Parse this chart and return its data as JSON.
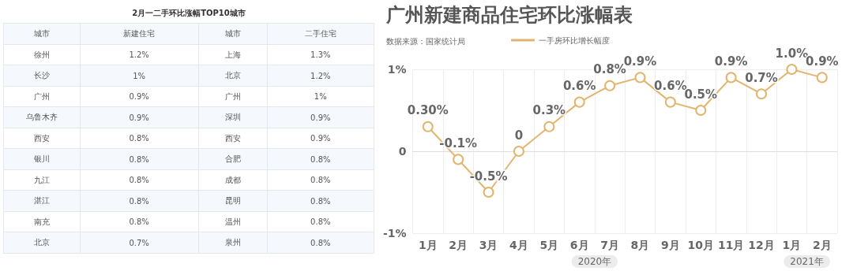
{
  "chart_data": [
    {
      "type": "other",
      "title": "2月一二手环比涨幅TOP10城市",
      "annotations": [
        "城市",
        "新建住宅",
        "城市",
        "二手住宅",
        "徐州",
        "1.2%",
        "上海",
        "1.3%",
        "长沙",
        "1%",
        "北京",
        "1.2%",
        "广州",
        "0.9%",
        "广州",
        "1%",
        "乌鲁木齐",
        "0.9%",
        "深圳",
        "0.9%",
        "西安",
        "0.8%",
        "西安",
        "0.9%",
        "银川",
        "0.8%",
        "合肥",
        "0.8%",
        "九江",
        "0.8%",
        "成都",
        "0.8%",
        "湛江",
        "0.8%",
        "昆明",
        "0.8%",
        "南充",
        "0.8%",
        "温州",
        "0.8%",
        "北京",
        "0.7%",
        "泉州",
        "0.8%"
      ]
    },
    {
      "type": "line",
      "title": "广州新建商品住宅环比涨幅表",
      "subtitle": "数据来源：国家统计局",
      "categories": [
        "1月",
        "2月",
        "3月",
        "4月",
        "5月",
        "6月",
        "7月",
        "8月",
        "9月",
        "10月",
        "11月",
        "12月",
        "1月",
        "2月"
      ],
      "series": [
        {
          "name": "一手房环比增长幅度",
          "color": "#e2b46c",
          "values": [
            0.3,
            -0.1,
            -0.5,
            0,
            0.3,
            0.6,
            0.8,
            0.9,
            0.6,
            0.5,
            0.9,
            0.7,
            1.0,
            0.9
          ],
          "value_labels": [
            "0.30%",
            "-0.1%",
            "-0.5%",
            "0",
            "0.3%",
            "0.6%",
            "0.8%",
            "0.9%",
            "0.6%",
            "0.5%",
            "0.9%",
            "0.7%",
            "1.0%",
            "0.9%"
          ]
        }
      ],
      "ylim": [
        -1,
        1
      ],
      "yticks": [
        {
          "value": -1,
          "label": "-1%"
        },
        0,
        {
          "value": 1,
          "label": "1%"
        }
      ],
      "annotations": [
        "2020年",
        "2021年"
      ],
      "grid": true,
      "legend": "top",
      "marker": "circle",
      "line_style": "solid"
    }
  ]
}
